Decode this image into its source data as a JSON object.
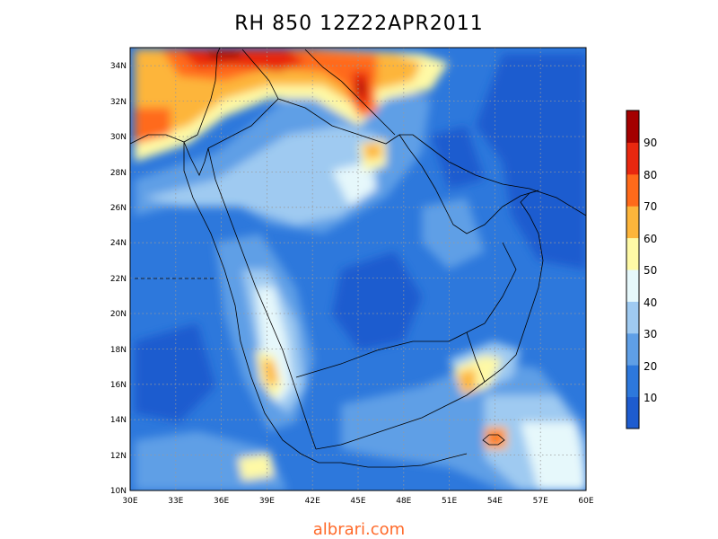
{
  "title": "RH 850 12Z22APR2011",
  "footer": {
    "text": "albrari.com",
    "color": "#ff6a2a"
  },
  "map": {
    "lon_range": [
      30,
      60
    ],
    "lat_range": [
      10,
      35
    ],
    "x_ticks": [
      "30E",
      "33E",
      "36E",
      "39E",
      "42E",
      "45E",
      "48E",
      "51E",
      "54E",
      "57E",
      "60E"
    ],
    "y_ticks": [
      "10N",
      "12N",
      "14N",
      "16N",
      "18N",
      "20N",
      "22N",
      "24N",
      "26N",
      "28N",
      "30N",
      "32N",
      "34N"
    ],
    "grid": "dotted"
  },
  "colorbar": {
    "labels": [
      "10",
      "20",
      "30",
      "40",
      "50",
      "60",
      "70",
      "80",
      "90"
    ],
    "colors": [
      "#1e5ccf",
      "#2d78dc",
      "#5f9fe6",
      "#9fcaf1",
      "#e6f8fb",
      "#fef9a6",
      "#fdb53b",
      "#ff6a1a",
      "#e8280f",
      "#a40000"
    ]
  }
}
